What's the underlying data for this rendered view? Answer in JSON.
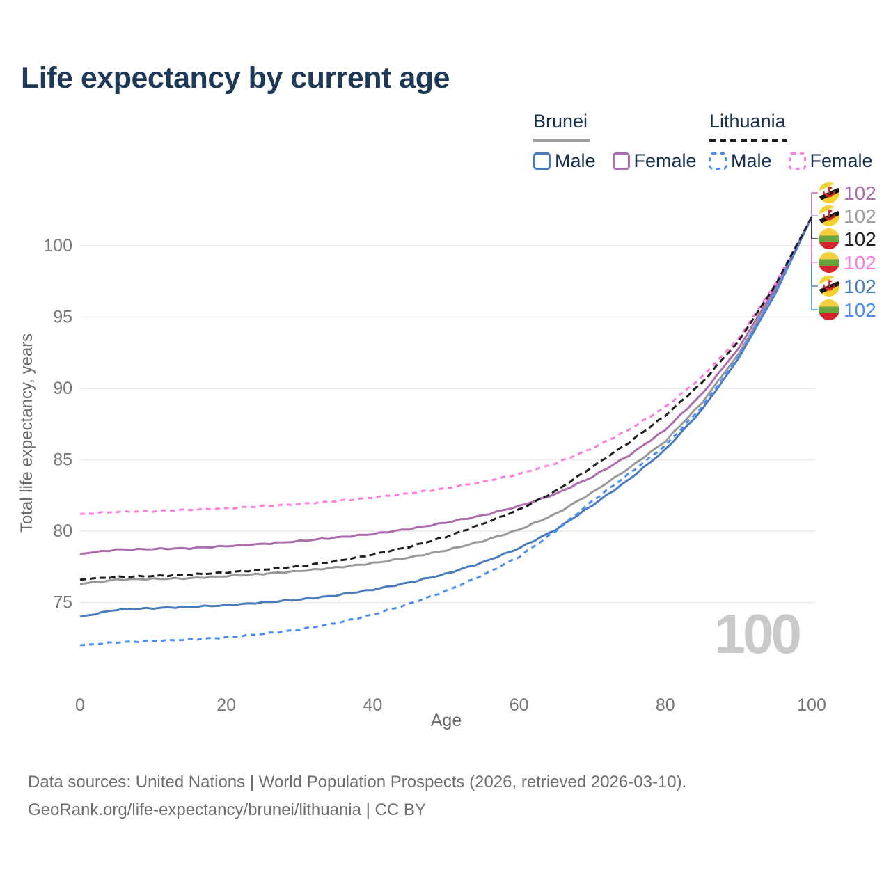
{
  "header": {
    "title": "Life expectancy by current age"
  },
  "legend": {
    "groups": [
      {
        "country": "Brunei",
        "line_style": "solid",
        "underline_color": "#9e9e9e",
        "items": [
          {
            "label": "Male",
            "color": "#4a7cbc",
            "dashed": false
          },
          {
            "label": "Female",
            "color": "#ad6cad",
            "dashed": false
          }
        ]
      },
      {
        "country": "Lithuania",
        "line_style": "dashed",
        "underline_color": "#1f1f1f",
        "items": [
          {
            "label": "Male",
            "color": "#4b8ef2",
            "dashed": true
          },
          {
            "label": "Female",
            "color": "#fc7ce0",
            "dashed": true
          }
        ]
      }
    ]
  },
  "chart_data": {
    "type": "line",
    "title": "Life expectancy by current age",
    "xlabel": "Age",
    "ylabel": "Total life expectancy, years",
    "x_ticks": [
      0,
      20,
      40,
      60,
      80,
      100
    ],
    "y_ticks": [
      75,
      80,
      85,
      90,
      95,
      100
    ],
    "xlim": [
      0,
      100
    ],
    "ylim": [
      70,
      104
    ],
    "grid": "horizontal",
    "legend_position": "top-right",
    "hover_age_label": "100",
    "ages": [
      0,
      5,
      10,
      15,
      20,
      25,
      30,
      35,
      40,
      45,
      50,
      55,
      60,
      65,
      70,
      75,
      80,
      85,
      90,
      95,
      100
    ],
    "series": [
      {
        "name": "Brunei Male",
        "country": "Brunei",
        "sex": "Male",
        "color": "#4a7cbc",
        "dash": null,
        "values": [
          74.0,
          74.5,
          74.6,
          74.7,
          74.8,
          75.0,
          75.2,
          75.5,
          75.9,
          76.4,
          77.0,
          77.8,
          78.8,
          80.1,
          81.8,
          83.6,
          85.7,
          88.5,
          92.1,
          96.6,
          102
        ]
      },
      {
        "name": "Brunei Female",
        "country": "Brunei",
        "sex": "Female",
        "color": "#ad6cad",
        "dash": null,
        "values": [
          78.4,
          78.7,
          78.75,
          78.8,
          78.95,
          79.1,
          79.3,
          79.55,
          79.8,
          80.15,
          80.6,
          81.1,
          81.75,
          82.6,
          83.8,
          85.3,
          87.1,
          89.6,
          92.8,
          97.0,
          102
        ]
      },
      {
        "name": "Brunei Total",
        "country": "Brunei",
        "sex": "Both",
        "color": "#999999",
        "dash": null,
        "values": [
          76.3,
          76.6,
          76.65,
          76.7,
          76.85,
          77.0,
          77.2,
          77.45,
          77.75,
          78.15,
          78.65,
          79.3,
          80.1,
          81.2,
          82.7,
          84.4,
          86.3,
          89.0,
          92.4,
          96.8,
          102
        ]
      },
      {
        "name": "Lithuania Male",
        "country": "Lithuania",
        "sex": "Male",
        "color": "#4b8ef2",
        "dash": [
          7,
          6
        ],
        "values": [
          72.0,
          72.2,
          72.3,
          72.4,
          72.55,
          72.8,
          73.1,
          73.55,
          74.15,
          74.9,
          75.8,
          76.9,
          78.2,
          80.0,
          82.1,
          84.0,
          86.0,
          88.7,
          92.2,
          96.7,
          102
        ]
      },
      {
        "name": "Lithuania Female",
        "country": "Lithuania",
        "sex": "Female",
        "color": "#fc7ce0",
        "dash": [
          7,
          6
        ],
        "values": [
          81.2,
          81.35,
          81.4,
          81.5,
          81.6,
          81.75,
          81.9,
          82.1,
          82.35,
          82.65,
          83.0,
          83.45,
          84.0,
          84.75,
          85.8,
          87.1,
          88.7,
          90.8,
          93.5,
          97.3,
          102
        ]
      },
      {
        "name": "Lithuania Total",
        "country": "Lithuania",
        "sex": "Both",
        "color": "#1f1f1f",
        "dash": [
          9,
          5
        ],
        "values": [
          76.6,
          76.8,
          76.85,
          76.95,
          77.1,
          77.3,
          77.55,
          77.9,
          78.35,
          78.9,
          79.6,
          80.5,
          81.5,
          82.8,
          84.5,
          86.2,
          88.1,
          90.4,
          93.3,
          97.2,
          102
        ]
      }
    ],
    "end_labels": [
      {
        "value": "102",
        "series": "Brunei Female",
        "flag": "brunei",
        "color": "#ad6cad"
      },
      {
        "value": "102",
        "series": "Brunei Total",
        "flag": "brunei",
        "color": "#9e9e9e"
      },
      {
        "value": "102",
        "series": "Lithuania Total",
        "flag": "lithuania",
        "color": "#1f1f1f"
      },
      {
        "value": "102",
        "series": "Lithuania Female",
        "flag": "lithuania",
        "color": "#fc7ce0"
      },
      {
        "value": "102",
        "series": "Brunei Male",
        "flag": "brunei",
        "color": "#4a7cbc"
      },
      {
        "value": "102",
        "series": "Lithuania Male",
        "flag": "lithuania",
        "color": "#4b8ef2"
      }
    ]
  },
  "footer": {
    "line1": "Data sources: United Nations | World Population Prospects (2026, retrieved 2026-03-10).",
    "line2": "GeoRank.org/life-expectancy/brunei/lithuania | CC BY"
  }
}
